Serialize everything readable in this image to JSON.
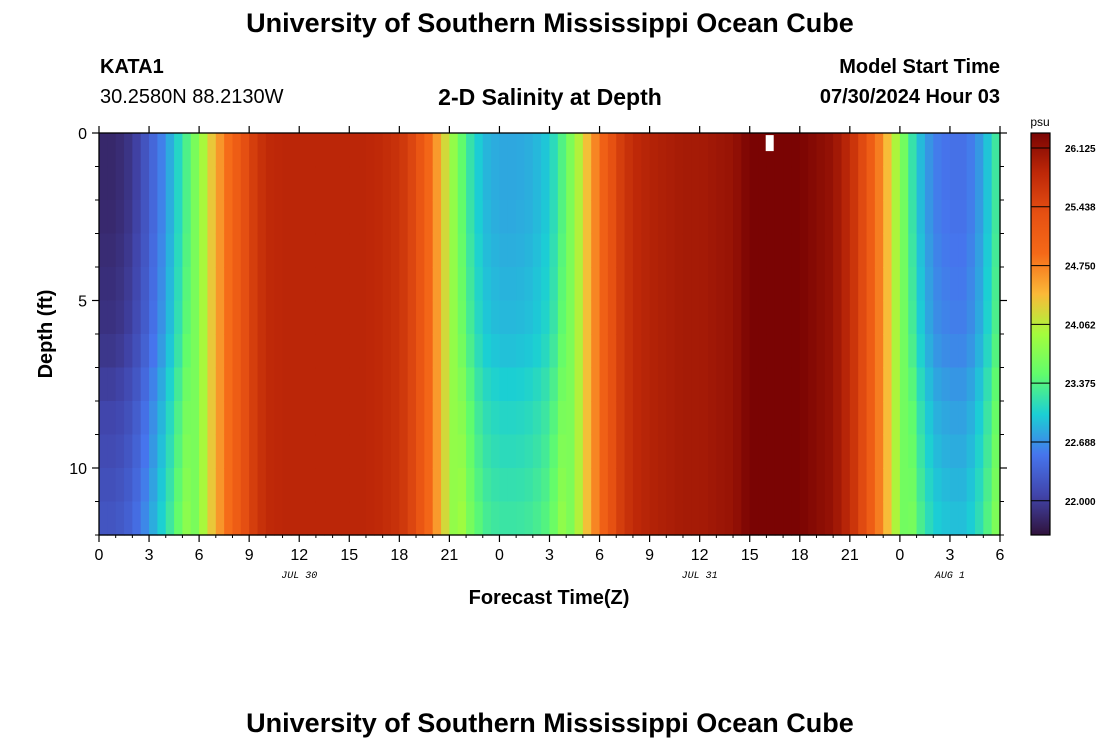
{
  "header": {
    "title": "University of Southern Mississippi Ocean Cube",
    "station": "KATA1",
    "coordinates": "30.2580N  88.2130W",
    "subtitle": "2-D Salinity at Depth",
    "model_start_label": "Model Start Time",
    "model_start_value": "07/30/2024 Hour 03"
  },
  "footer": {
    "title": "University of Southern Mississippi Ocean Cube"
  },
  "chart_data": {
    "type": "heatmap",
    "title": "2-D Salinity at Depth",
    "xlabel": "Forecast Time(Z)",
    "ylabel": "Depth (ft)",
    "xlim": [
      0,
      54
    ],
    "ylim": [
      0,
      12
    ],
    "x_tick_values": [
      0,
      3,
      6,
      9,
      12,
      15,
      18,
      21,
      24,
      27,
      30,
      33,
      36,
      39,
      42,
      45,
      48,
      51,
      54
    ],
    "x_tick_labels": [
      "0",
      "3",
      "6",
      "9",
      "12",
      "15",
      "18",
      "21",
      "0",
      "3",
      "6",
      "9",
      "12",
      "15",
      "18",
      "21",
      "0",
      "3",
      "6"
    ],
    "y_tick_values": [
      0,
      5,
      10
    ],
    "y_tick_labels": [
      "0",
      "5",
      "10"
    ],
    "date_labels": [
      {
        "label": "JUL 30",
        "x": 12
      },
      {
        "label": "JUL 31",
        "x": 36
      },
      {
        "label": "AUG 1",
        "x": 51
      }
    ],
    "colorbar": {
      "unit": "psu",
      "min": 21.6,
      "max": 26.3,
      "tick_values": [
        22.0,
        22.688,
        23.375,
        24.062,
        24.75,
        25.438,
        26.125
      ],
      "tick_labels": [
        "22.000",
        "22.688",
        "23.375",
        "24.062",
        "24.750",
        "25.438",
        "26.125"
      ]
    },
    "time_hours": [
      0,
      1,
      2,
      3,
      4,
      5,
      6,
      7,
      8,
      9,
      10,
      11,
      12,
      13,
      14,
      15,
      16,
      17,
      18,
      19,
      20,
      21,
      22,
      23,
      24,
      25,
      26,
      27,
      28,
      29,
      30,
      31,
      32,
      33,
      34,
      35,
      36,
      37,
      38,
      39,
      40,
      41,
      42,
      43,
      44,
      45,
      46,
      47,
      48,
      49,
      50,
      51,
      52,
      53,
      54
    ],
    "surface_salinity": [
      21.8,
      21.8,
      21.95,
      22.3,
      22.7,
      23.2,
      23.8,
      24.5,
      25.0,
      25.5,
      25.8,
      25.85,
      25.85,
      25.85,
      25.85,
      25.85,
      25.85,
      25.8,
      25.7,
      25.4,
      24.8,
      24.0,
      23.3,
      22.9,
      22.8,
      22.8,
      22.85,
      23.0,
      23.5,
      24.2,
      24.9,
      25.5,
      25.8,
      25.9,
      25.95,
      26.0,
      26.0,
      26.05,
      26.1,
      26.3,
      26.3,
      26.3,
      26.3,
      26.2,
      26.1,
      25.8,
      25.3,
      24.6,
      23.8,
      23.0,
      22.6,
      22.5,
      22.5,
      22.8,
      23.4
    ],
    "depth_anomaly_ft": [
      0,
      2,
      4,
      6,
      8,
      10,
      12
    ],
    "depth_anomaly_psu": [
      0,
      0,
      0.05,
      0.1,
      0.25,
      0.35,
      0.45
    ],
    "missing_cells": [
      {
        "time": 40,
        "depth": 0.3
      }
    ]
  }
}
